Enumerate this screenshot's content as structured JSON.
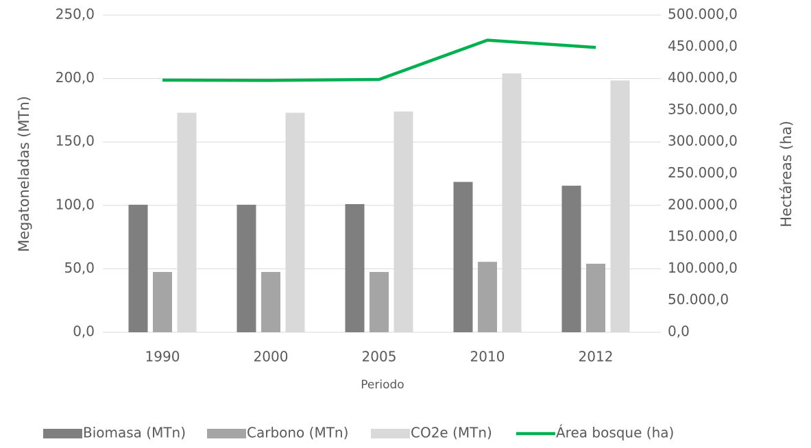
{
  "chart_data": {
    "type": "bar",
    "x_label": "Periodo",
    "y_label": "Megatoneladas (MTn)",
    "y2_label": "Hectáreas (ha)",
    "categories": [
      "1990",
      "2000",
      "2005",
      "2010",
      "2012"
    ],
    "series": [
      {
        "name": "Biomasa (MTn)",
        "color": "#7f7f7f",
        "type": "bar",
        "values": [
          100.5,
          100.5,
          101,
          118.5,
          115.5
        ]
      },
      {
        "name": "Carbono (MTn)",
        "color": "#a5a5a5",
        "type": "bar",
        "values": [
          47.5,
          47.5,
          47.5,
          55.5,
          54
        ]
      },
      {
        "name": "CO2e (MTn)",
        "color": "#d9d9d9",
        "type": "bar",
        "values": [
          173,
          173,
          174,
          204,
          198.5
        ]
      },
      {
        "name": "Área bosque (ha)",
        "color": "#00b050",
        "type": "line",
        "axis": "y2",
        "values": [
          397400,
          397000,
          398500,
          460500,
          449000
        ]
      }
    ],
    "ylim": [
      0,
      250
    ],
    "yticks": [
      {
        "value": 0,
        "label": "0,0"
      },
      {
        "value": 50,
        "label": "50,0"
      },
      {
        "value": 100,
        "label": "100,0"
      },
      {
        "value": 150,
        "label": "150,0"
      },
      {
        "value": 200,
        "label": "200,0"
      },
      {
        "value": 250,
        "label": "250,0"
      }
    ],
    "y2lim": [
      0,
      500000
    ],
    "y2ticks": [
      {
        "value": 0,
        "label": "0,0"
      },
      {
        "value": 50000,
        "label": "50.000,0"
      },
      {
        "value": 100000,
        "label": "100.000,0"
      },
      {
        "value": 150000,
        "label": "150.000,0"
      },
      {
        "value": 200000,
        "label": "200.000,0"
      },
      {
        "value": 250000,
        "label": "250.000,0"
      },
      {
        "value": 300000,
        "label": "300.000,0"
      },
      {
        "value": 350000,
        "label": "350.000,0"
      },
      {
        "value": 400000,
        "label": "400.000,0"
      },
      {
        "value": 450000,
        "label": "450.000,0"
      },
      {
        "value": 500000,
        "label": "500.000,0"
      }
    ],
    "grid": true,
    "legend": "bottom"
  }
}
